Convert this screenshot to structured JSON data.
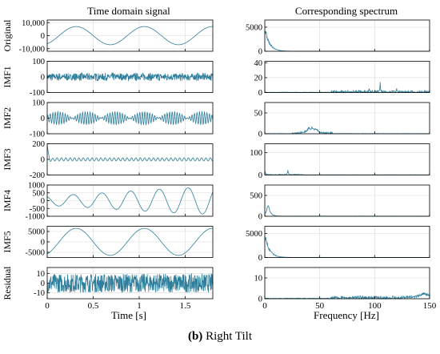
{
  "caption": {
    "label": "(b)",
    "text": "Right Tilt"
  },
  "colors": {
    "signal": "#2f7f9c",
    "grid": "#d9d9d9",
    "axis": "#000000"
  },
  "chart_data": [
    {
      "type": "line",
      "title": "Time domain signal",
      "xlabel": "Time [s]",
      "xlim": [
        0,
        1.8
      ],
      "xticks": [
        0,
        0.5,
        1,
        1.5
      ],
      "xtick_labels": [
        "0",
        "0.5",
        "1",
        "1.5"
      ],
      "grid": true,
      "panels": [
        {
          "name": "Original",
          "ylim": [
            -12000,
            12000
          ],
          "yticks": [
            -10000,
            0,
            10000
          ],
          "ytick_labels": [
            "-10,000",
            "0",
            "10,000"
          ],
          "components": [
            {
              "kind": "sine",
              "amp": 7000,
              "freq": 1.35,
              "phase": -1.1
            }
          ]
        },
        {
          "name": "IMF1",
          "ylim": [
            -100,
            100
          ],
          "yticks": [
            -100,
            0,
            100
          ],
          "ytick_labels": [
            "-100",
            "0",
            "100"
          ],
          "components": [
            {
              "kind": "noise",
              "amp": 14,
              "freq": 105,
              "burst_freq": 12
            }
          ]
        },
        {
          "name": "IMF2",
          "ylim": [
            -100,
            100
          ],
          "yticks": [
            -100,
            0,
            100
          ],
          "ytick_labels": [
            "-100",
            "0",
            "100"
          ],
          "components": [
            {
              "kind": "beat",
              "amp": 42,
              "freq": 37,
              "burst_freq": 3.2
            }
          ]
        },
        {
          "name": "IMF3",
          "ylim": [
            -200,
            200
          ],
          "yticks": [
            -200,
            0,
            200
          ],
          "ytick_labels": [
            "-200",
            "0",
            "200"
          ],
          "components": [
            {
              "kind": "sine",
              "amp": 20,
              "freq": 21,
              "phase": 0
            },
            {
              "kind": "transient",
              "amp": 180
            }
          ]
        },
        {
          "name": "IMF4",
          "ylim": [
            -1000,
            1000
          ],
          "yticks": [
            -1000,
            -500,
            0,
            500,
            1000
          ],
          "ytick_labels": [
            "-1000",
            "-500",
            "0",
            "500",
            "1000"
          ],
          "components": [
            {
              "kind": "chirp",
              "amp": 700,
              "freq": 3.2,
              "phase": 2.2
            }
          ]
        },
        {
          "name": "IMF5",
          "ylim": [
            -7500,
            7500
          ],
          "yticks": [
            -5000,
            0,
            5000
          ],
          "ytick_labels": [
            "-5000",
            "0",
            "5000"
          ],
          "components": [
            {
              "kind": "sine",
              "amp": 6500,
              "freq": 1.35,
              "phase": -1.1
            }
          ]
        },
        {
          "name": "Residual",
          "ylim": [
            -16,
            16
          ],
          "yticks": [
            -10,
            0,
            10
          ],
          "ytick_labels": [
            "-10",
            "0",
            "10"
          ],
          "components": [
            {
              "kind": "noise",
              "amp": 6,
              "freq": 150,
              "burst_freq": 0
            }
          ]
        }
      ]
    },
    {
      "type": "line",
      "title": "Corresponding spectrum",
      "xlabel": "Frequency [Hz]",
      "xlim": [
        0,
        150
      ],
      "xticks": [
        0,
        50,
        100,
        150
      ],
      "xtick_labels": [
        "0",
        "50",
        "100",
        "150"
      ],
      "grid": true,
      "panels": [
        {
          "name": "Original",
          "ylim": [
            0,
            6500
          ],
          "yticks": [
            0,
            5000
          ],
          "ytick_labels": [
            "0",
            "5000"
          ],
          "peaks": [
            {
              "f": 0.5,
              "a": 5200,
              "decay": 4
            }
          ],
          "noise": 15
        },
        {
          "name": "IMF1",
          "ylim": [
            0,
            42
          ],
          "yticks": [
            0,
            20,
            40
          ],
          "ytick_labels": [
            "0",
            "20",
            "40"
          ],
          "peaks": [
            {
              "f": 105,
              "a": 12,
              "decay": 0.4
            },
            {
              "f": 95,
              "a": 6,
              "decay": 0.4
            },
            {
              "f": 120,
              "a": 4,
              "decay": 0.4
            }
          ],
          "band": [
            60,
            150,
            2.5
          ],
          "noise": 0.5
        },
        {
          "name": "IMF2",
          "ylim": [
            0,
            75
          ],
          "yticks": [
            0,
            50
          ],
          "ytick_labels": [
            "0",
            "50"
          ],
          "peaks": [
            {
              "f": 43,
              "a": 12,
              "decay": 3
            },
            {
              "f": 40,
              "a": 9,
              "decay": 2
            },
            {
              "f": 47,
              "a": 8,
              "decay": 2
            }
          ],
          "band": [
            25,
            62,
            4
          ],
          "noise": 0.6
        },
        {
          "name": "IMF3",
          "ylim": [
            0,
            140
          ],
          "yticks": [
            0,
            100
          ],
          "ytick_labels": [
            "0",
            "100"
          ],
          "peaks": [
            {
              "f": 21,
              "a": 22,
              "decay": 0.6
            },
            {
              "f": 0.3,
              "a": 12,
              "decay": 1
            }
          ],
          "band": [
            0,
            35,
            3
          ],
          "noise": 0.8
        },
        {
          "name": "IMF4",
          "ylim": [
            0,
            750
          ],
          "yticks": [
            0,
            500
          ],
          "ytick_labels": [
            "0",
            "500"
          ],
          "peaks": [
            {
              "f": 3,
              "a": 330,
              "decay": 2
            }
          ],
          "noise": 4
        },
        {
          "name": "IMF5",
          "ylim": [
            0,
            6500
          ],
          "yticks": [
            0,
            5000
          ],
          "ytick_labels": [
            "0",
            "5000"
          ],
          "peaks": [
            {
              "f": 0.5,
              "a": 5000,
              "decay": 4
            }
          ],
          "noise": 15
        },
        {
          "name": "Residual",
          "ylim": [
            0,
            15
          ],
          "yticks": [
            0,
            10
          ],
          "ytick_labels": [
            "0",
            "10"
          ],
          "peaks": [
            {
              "f": 145,
              "a": 2.5,
              "decay": 6
            }
          ],
          "band": [
            60,
            150,
            1.2
          ],
          "noise": 0.3
        }
      ]
    }
  ]
}
